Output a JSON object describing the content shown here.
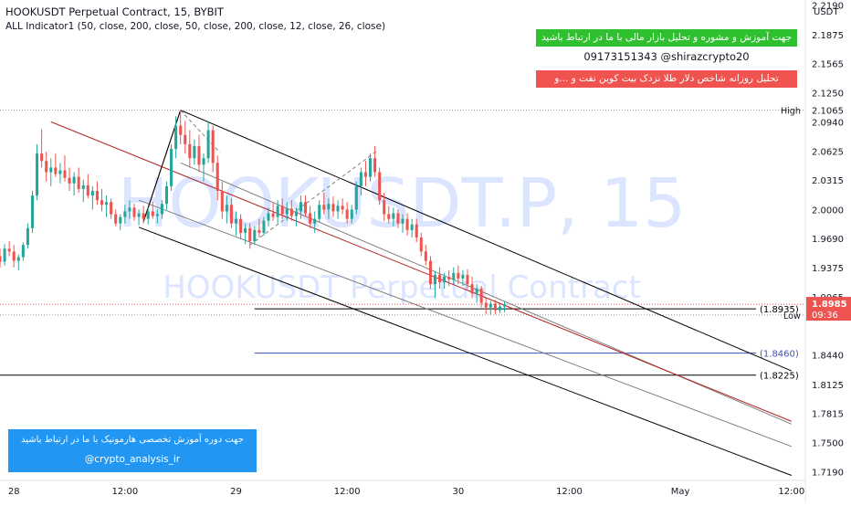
{
  "header": {
    "title": "HOOKUSDT Perpetual Contract, 15, BYBIT",
    "indicator": "ALL Indicator1 (50, close, 200, close, 50, close, 200, close, 12, close, 26, close)"
  },
  "watermark": {
    "symbol": "HOOKUSDT.P, 15",
    "name": "HOOKUSDT Perpetual Contract"
  },
  "promo": {
    "green_text": "جهت آموزش و مشوره و تحلیل بازار مالی با ما در ارتباط باشید",
    "contact": "09173151343  @shirazcrypto20",
    "red_text": "تحلیل روزانه شاخص دلار طلا نزدک بیت کوین نفت و ...و"
  },
  "course_box": {
    "line1": "جهت دوره آموزش تخصصی هارمونیک با ما در ارتباط باشید",
    "line2": "@crypto_analysis_ir"
  },
  "colors": {
    "up": "#26a69a",
    "down": "#ef5350",
    "channel_black": "#000000",
    "channel_gray": "#808080",
    "channel_red": "#b22222",
    "level_blue": "#3f51b5",
    "watermark": "#2962ff",
    "course_bg": "#2196f3",
    "promo_green": "#2fc02f",
    "promo_red": "#ef5350"
  },
  "chart_data": {
    "type": "candlestick",
    "symbol": "HOOKUSDT.P",
    "timeframe": "15",
    "exchange": "BYBIT",
    "currency": "USDT",
    "y_scale": "linear",
    "ylim": [
      1.7096,
      2.2246
    ],
    "y_ticks": [
      "2.2190",
      "2.1875",
      "2.1565",
      "2.1250",
      "2.0940",
      "2.0625",
      "2.0315",
      "2.0000",
      "1.9690",
      "1.9375",
      "1.9065",
      "1.8440",
      "1.8125",
      "1.7815",
      "1.7500",
      "1.7190"
    ],
    "x_ticks": [
      {
        "label": "28",
        "t": 6
      },
      {
        "label": "12:00",
        "t": 54
      },
      {
        "label": "29",
        "t": 102
      },
      {
        "label": "12:00",
        "t": 150
      },
      {
        "label": "30",
        "t": 198
      },
      {
        "label": "12:00",
        "t": 246
      },
      {
        "label": "May",
        "t": 294
      },
      {
        "label": "12:00",
        "t": 342
      }
    ],
    "markers": {
      "high": {
        "label": "High",
        "value": "2.1065"
      },
      "low": {
        "label": "Low",
        "value": "1.8870"
      },
      "last": {
        "value": "1.8985",
        "countdown": "09:36"
      }
    },
    "levels": [
      {
        "label": "(1.8935)",
        "value": 1.8935,
        "from_t": 110,
        "color": "#000000"
      },
      {
        "label": "(1.8460)",
        "value": 1.846,
        "from_t": 110,
        "color": "#3f51b5"
      },
      {
        "label": "(1.8225)",
        "value": 1.8225,
        "from_t": 0,
        "color": "#000000"
      }
    ],
    "dotted_lines": [
      2.1065,
      1.8985,
      1.887
    ],
    "channel_lines": [
      {
        "kind": "outer-upper",
        "color": "#000000",
        "from": [
          78,
          2.1065
        ],
        "to": [
          342,
          1.827
        ]
      },
      {
        "kind": "inner-upper",
        "color": "#808080",
        "from": [
          78,
          2.05
        ],
        "to": [
          342,
          1.77
        ]
      },
      {
        "kind": "median",
        "color": "#b22222",
        "from": [
          22,
          2.094
        ],
        "to": [
          342,
          1.773
        ]
      },
      {
        "kind": "inner-lower",
        "color": "#808080",
        "from": [
          60,
          2.01
        ],
        "to": [
          342,
          1.746
        ]
      },
      {
        "kind": "outer-lower",
        "color": "#000000",
        "from": [
          60,
          1.981
        ],
        "to": [
          342,
          1.715
        ]
      },
      {
        "kind": "handle",
        "color": "#b22222",
        "from": [
          62,
          1.987
        ],
        "to": [
          78,
          2.1065
        ]
      },
      {
        "kind": "handle",
        "color": "#000000",
        "from": [
          62,
          1.987
        ],
        "to": [
          78,
          2.1065
        ]
      }
    ],
    "dashed_lines": [
      {
        "from": [
          78,
          2.1065
        ],
        "to": [
          95,
          2.061
        ]
      },
      {
        "from": [
          108,
          1.962
        ],
        "to": [
          163,
          2.063
        ]
      }
    ],
    "candles": [
      {
        "t": 0,
        "o": 1.95,
        "h": 1.958,
        "l": 1.938,
        "c": 1.944
      },
      {
        "t": 2,
        "o": 1.944,
        "h": 1.963,
        "l": 1.94,
        "c": 1.958
      },
      {
        "t": 4,
        "o": 1.958,
        "h": 1.966,
        "l": 1.95,
        "c": 1.955
      },
      {
        "t": 6,
        "o": 1.955,
        "h": 1.962,
        "l": 1.938,
        "c": 1.945
      },
      {
        "t": 8,
        "o": 1.945,
        "h": 1.952,
        "l": 1.935,
        "c": 1.949
      },
      {
        "t": 10,
        "o": 1.949,
        "h": 1.965,
        "l": 1.945,
        "c": 1.962
      },
      {
        "t": 12,
        "o": 1.962,
        "h": 1.985,
        "l": 1.958,
        "c": 1.98
      },
      {
        "t": 14,
        "o": 1.98,
        "h": 2.02,
        "l": 1.975,
        "c": 2.015
      },
      {
        "t": 16,
        "o": 2.015,
        "h": 2.07,
        "l": 2.01,
        "c": 2.06
      },
      {
        "t": 18,
        "o": 2.06,
        "h": 2.086,
        "l": 2.045,
        "c": 2.052
      },
      {
        "t": 20,
        "o": 2.052,
        "h": 2.062,
        "l": 2.03,
        "c": 2.04
      },
      {
        "t": 22,
        "o": 2.04,
        "h": 2.055,
        "l": 2.025,
        "c": 2.045
      },
      {
        "t": 24,
        "o": 2.045,
        "h": 2.06,
        "l": 2.035,
        "c": 2.038
      },
      {
        "t": 26,
        "o": 2.038,
        "h": 2.05,
        "l": 2.028,
        "c": 2.042
      },
      {
        "t": 28,
        "o": 2.042,
        "h": 2.058,
        "l": 2.03,
        "c": 2.034
      },
      {
        "t": 30,
        "o": 2.034,
        "h": 2.045,
        "l": 2.02,
        "c": 2.028
      },
      {
        "t": 32,
        "o": 2.028,
        "h": 2.04,
        "l": 2.015,
        "c": 2.035
      },
      {
        "t": 34,
        "o": 2.035,
        "h": 2.045,
        "l": 2.018,
        "c": 2.022
      },
      {
        "t": 36,
        "o": 2.022,
        "h": 2.032,
        "l": 2.008,
        "c": 2.026
      },
      {
        "t": 38,
        "o": 2.026,
        "h": 2.038,
        "l": 2.012,
        "c": 2.015
      },
      {
        "t": 40,
        "o": 2.015,
        "h": 2.025,
        "l": 2.0,
        "c": 2.02
      },
      {
        "t": 42,
        "o": 2.02,
        "h": 2.03,
        "l": 2.005,
        "c": 2.01
      },
      {
        "t": 44,
        "o": 2.01,
        "h": 2.022,
        "l": 1.998,
        "c": 2.005
      },
      {
        "t": 46,
        "o": 2.005,
        "h": 2.015,
        "l": 1.992,
        "c": 2.008
      },
      {
        "t": 48,
        "o": 2.008,
        "h": 2.012,
        "l": 1.99,
        "c": 1.995
      },
      {
        "t": 50,
        "o": 1.995,
        "h": 2.0,
        "l": 1.982,
        "c": 1.985
      },
      {
        "t": 52,
        "o": 1.985,
        "h": 1.995,
        "l": 1.978,
        "c": 1.992
      },
      {
        "t": 54,
        "o": 1.992,
        "h": 2.005,
        "l": 1.985,
        "c": 1.998
      },
      {
        "t": 56,
        "o": 1.998,
        "h": 2.01,
        "l": 1.99,
        "c": 2.002
      },
      {
        "t": 58,
        "o": 2.002,
        "h": 2.006,
        "l": 1.988,
        "c": 1.992
      },
      {
        "t": 60,
        "o": 1.992,
        "h": 2.0,
        "l": 1.983,
        "c": 1.996
      },
      {
        "t": 62,
        "o": 1.996,
        "h": 2.004,
        "l": 1.985,
        "c": 1.99
      },
      {
        "t": 64,
        "o": 1.99,
        "h": 2.002,
        "l": 1.984,
        "c": 1.998
      },
      {
        "t": 66,
        "o": 1.998,
        "h": 2.008,
        "l": 1.99,
        "c": 1.993
      },
      {
        "t": 68,
        "o": 1.993,
        "h": 2.0,
        "l": 1.985,
        "c": 1.995
      },
      {
        "t": 70,
        "o": 1.995,
        "h": 2.01,
        "l": 1.99,
        "c": 2.006
      },
      {
        "t": 72,
        "o": 2.006,
        "h": 2.03,
        "l": 2.0,
        "c": 2.025
      },
      {
        "t": 74,
        "o": 2.025,
        "h": 2.07,
        "l": 2.02,
        "c": 2.065
      },
      {
        "t": 76,
        "o": 2.065,
        "h": 2.1,
        "l": 2.055,
        "c": 2.09
      },
      {
        "t": 78,
        "o": 2.09,
        "h": 2.1065,
        "l": 2.07,
        "c": 2.08
      },
      {
        "t": 80,
        "o": 2.08,
        "h": 2.095,
        "l": 2.06,
        "c": 2.07
      },
      {
        "t": 82,
        "o": 2.07,
        "h": 2.085,
        "l": 2.045,
        "c": 2.055
      },
      {
        "t": 84,
        "o": 2.055,
        "h": 2.075,
        "l": 2.048,
        "c": 2.068
      },
      {
        "t": 86,
        "o": 2.068,
        "h": 2.08,
        "l": 2.04,
        "c": 2.048
      },
      {
        "t": 88,
        "o": 2.048,
        "h": 2.06,
        "l": 2.03,
        "c": 2.055
      },
      {
        "t": 90,
        "o": 2.055,
        "h": 2.095,
        "l": 2.05,
        "c": 2.085
      },
      {
        "t": 92,
        "o": 2.085,
        "h": 2.09,
        "l": 2.04,
        "c": 2.05
      },
      {
        "t": 94,
        "o": 2.05,
        "h": 2.058,
        "l": 2.01,
        "c": 2.02
      },
      {
        "t": 96,
        "o": 2.02,
        "h": 2.03,
        "l": 1.99,
        "c": 1.998
      },
      {
        "t": 98,
        "o": 1.998,
        "h": 2.015,
        "l": 1.985,
        "c": 2.005
      },
      {
        "t": 100,
        "o": 2.005,
        "h": 2.012,
        "l": 1.98,
        "c": 1.985
      },
      {
        "t": 102,
        "o": 1.985,
        "h": 1.998,
        "l": 1.972,
        "c": 1.99
      },
      {
        "t": 104,
        "o": 1.99,
        "h": 1.995,
        "l": 1.968,
        "c": 1.975
      },
      {
        "t": 106,
        "o": 1.975,
        "h": 1.985,
        "l": 1.963,
        "c": 1.98
      },
      {
        "t": 108,
        "o": 1.98,
        "h": 1.985,
        "l": 1.958,
        "c": 1.966
      },
      {
        "t": 110,
        "o": 1.966,
        "h": 1.982,
        "l": 1.962,
        "c": 1.978
      },
      {
        "t": 112,
        "o": 1.978,
        "h": 1.99,
        "l": 1.97,
        "c": 1.975
      },
      {
        "t": 114,
        "o": 1.975,
        "h": 1.992,
        "l": 1.972,
        "c": 1.988
      },
      {
        "t": 116,
        "o": 1.988,
        "h": 2.002,
        "l": 1.982,
        "c": 1.996
      },
      {
        "t": 118,
        "o": 1.996,
        "h": 2.008,
        "l": 1.988,
        "c": 1.992
      },
      {
        "t": 120,
        "o": 1.992,
        "h": 2.01,
        "l": 1.985,
        "c": 2.004
      },
      {
        "t": 122,
        "o": 2.004,
        "h": 2.012,
        "l": 1.99,
        "c": 1.995
      },
      {
        "t": 124,
        "o": 1.995,
        "h": 2.008,
        "l": 1.988,
        "c": 2.001
      },
      {
        "t": 126,
        "o": 2.001,
        "h": 2.01,
        "l": 1.988,
        "c": 1.993
      },
      {
        "t": 128,
        "o": 1.993,
        "h": 2.002,
        "l": 1.982,
        "c": 1.998
      },
      {
        "t": 130,
        "o": 1.998,
        "h": 2.015,
        "l": 1.99,
        "c": 2.008
      },
      {
        "t": 132,
        "o": 2.008,
        "h": 2.015,
        "l": 1.992,
        "c": 1.996
      },
      {
        "t": 134,
        "o": 1.996,
        "h": 2.004,
        "l": 1.98,
        "c": 1.985
      },
      {
        "t": 136,
        "o": 1.985,
        "h": 1.998,
        "l": 1.975,
        "c": 1.99
      },
      {
        "t": 138,
        "o": 1.99,
        "h": 2.01,
        "l": 1.986,
        "c": 2.005
      },
      {
        "t": 140,
        "o": 2.005,
        "h": 2.018,
        "l": 1.995,
        "c": 2.0
      },
      {
        "t": 142,
        "o": 2.0,
        "h": 2.012,
        "l": 1.99,
        "c": 2.006
      },
      {
        "t": 144,
        "o": 2.006,
        "h": 2.014,
        "l": 1.992,
        "c": 1.998
      },
      {
        "t": 146,
        "o": 1.998,
        "h": 2.01,
        "l": 1.99,
        "c": 2.004
      },
      {
        "t": 148,
        "o": 2.004,
        "h": 2.012,
        "l": 1.995,
        "c": 2.0
      },
      {
        "t": 150,
        "o": 2.0,
        "h": 2.008,
        "l": 1.985,
        "c": 1.99
      },
      {
        "t": 152,
        "o": 1.99,
        "h": 2.005,
        "l": 1.985,
        "c": 2.0
      },
      {
        "t": 154,
        "o": 2.0,
        "h": 2.03,
        "l": 1.995,
        "c": 2.025
      },
      {
        "t": 156,
        "o": 2.025,
        "h": 2.045,
        "l": 2.015,
        "c": 2.04
      },
      {
        "t": 158,
        "o": 2.04,
        "h": 2.052,
        "l": 2.025,
        "c": 2.035
      },
      {
        "t": 160,
        "o": 2.035,
        "h": 2.06,
        "l": 2.03,
        "c": 2.055
      },
      {
        "t": 162,
        "o": 2.055,
        "h": 2.068,
        "l": 2.035,
        "c": 2.04
      },
      {
        "t": 164,
        "o": 2.04,
        "h": 2.045,
        "l": 2.005,
        "c": 2.01
      },
      {
        "t": 166,
        "o": 2.01,
        "h": 2.018,
        "l": 1.988,
        "c": 1.995
      },
      {
        "t": 168,
        "o": 1.995,
        "h": 2.004,
        "l": 1.985,
        "c": 1.99
      },
      {
        "t": 170,
        "o": 1.99,
        "h": 2.002,
        "l": 1.982,
        "c": 1.996
      },
      {
        "t": 172,
        "o": 1.996,
        "h": 2.0,
        "l": 1.98,
        "c": 1.985
      },
      {
        "t": 174,
        "o": 1.985,
        "h": 1.995,
        "l": 1.975,
        "c": 1.99
      },
      {
        "t": 176,
        "o": 1.99,
        "h": 1.996,
        "l": 1.972,
        "c": 1.978
      },
      {
        "t": 178,
        "o": 1.978,
        "h": 1.99,
        "l": 1.97,
        "c": 1.984
      },
      {
        "t": 180,
        "o": 1.984,
        "h": 1.99,
        "l": 1.965,
        "c": 1.97
      },
      {
        "t": 182,
        "o": 1.97,
        "h": 1.975,
        "l": 1.95,
        "c": 1.955
      },
      {
        "t": 184,
        "o": 1.955,
        "h": 1.962,
        "l": 1.94,
        "c": 1.945
      },
      {
        "t": 186,
        "o": 1.945,
        "h": 1.95,
        "l": 1.915,
        "c": 1.92
      },
      {
        "t": 188,
        "o": 1.92,
        "h": 1.934,
        "l": 1.905,
        "c": 1.93
      },
      {
        "t": 190,
        "o": 1.93,
        "h": 1.938,
        "l": 1.915,
        "c": 1.922
      },
      {
        "t": 192,
        "o": 1.922,
        "h": 1.932,
        "l": 1.915,
        "c": 1.928
      },
      {
        "t": 194,
        "o": 1.928,
        "h": 1.935,
        "l": 1.918,
        "c": 1.925
      },
      {
        "t": 196,
        "o": 1.925,
        "h": 1.938,
        "l": 1.92,
        "c": 1.932
      },
      {
        "t": 198,
        "o": 1.932,
        "h": 1.94,
        "l": 1.92,
        "c": 1.926
      },
      {
        "t": 200,
        "o": 1.926,
        "h": 1.935,
        "l": 1.918,
        "c": 1.93
      },
      {
        "t": 202,
        "o": 1.93,
        "h": 1.936,
        "l": 1.915,
        "c": 1.92
      },
      {
        "t": 204,
        "o": 1.92,
        "h": 1.928,
        "l": 1.905,
        "c": 1.91
      },
      {
        "t": 206,
        "o": 1.91,
        "h": 1.92,
        "l": 1.9,
        "c": 1.915
      },
      {
        "t": 208,
        "o": 1.915,
        "h": 1.918,
        "l": 1.895,
        "c": 1.9
      },
      {
        "t": 210,
        "o": 1.9,
        "h": 1.905,
        "l": 1.888,
        "c": 1.895
      },
      {
        "t": 212,
        "o": 1.895,
        "h": 1.902,
        "l": 1.887,
        "c": 1.899
      },
      {
        "t": 214,
        "o": 1.899,
        "h": 1.903,
        "l": 1.888,
        "c": 1.892
      },
      {
        "t": 216,
        "o": 1.892,
        "h": 1.9,
        "l": 1.889,
        "c": 1.896
      },
      {
        "t": 218,
        "o": 1.896,
        "h": 1.901,
        "l": 1.89,
        "c": 1.8985
      }
    ]
  }
}
